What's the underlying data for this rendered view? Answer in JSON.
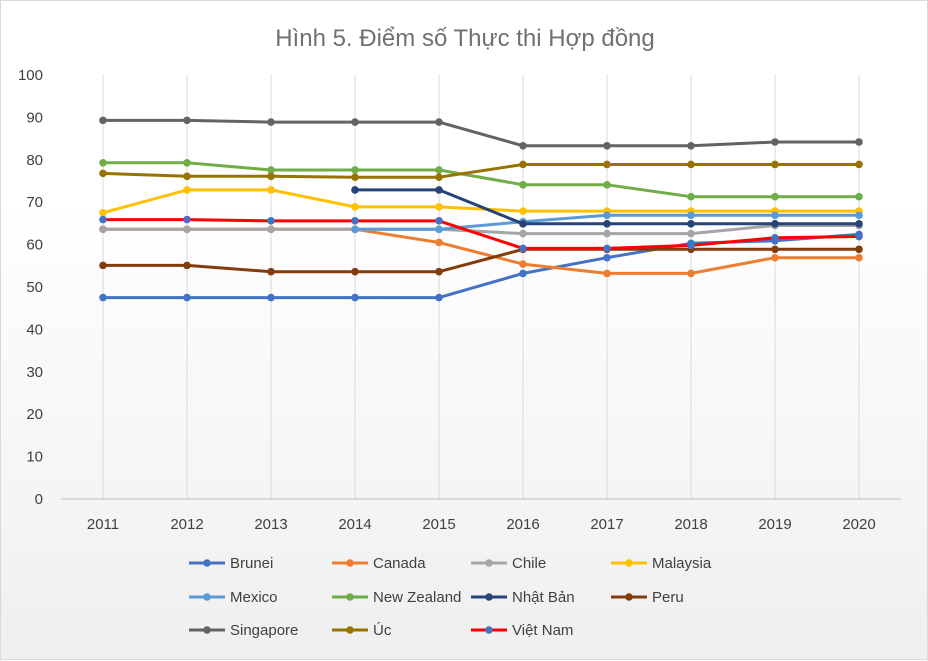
{
  "chart_data": {
    "type": "line",
    "title": "Hình 5. Điểm số Thực thi Hợp đồng",
    "xlabel": "",
    "ylabel": "",
    "x": [
      "2011",
      "2012",
      "2013",
      "2014",
      "2015",
      "2016",
      "2017",
      "2018",
      "2019",
      "2020"
    ],
    "ylim": [
      0,
      100
    ],
    "yticks": [
      0,
      10,
      20,
      30,
      40,
      50,
      60,
      70,
      80,
      90,
      100
    ],
    "grid": "vertical",
    "legend_position": "bottom",
    "series": [
      {
        "name": "Brunei",
        "color": "#4472C4",
        "values": [
          47.5,
          47.5,
          47.5,
          47.5,
          47.5,
          53.2,
          56.9,
          60.3,
          60.9,
          62.4
        ]
      },
      {
        "name": "Canada",
        "color": "#ED7D31",
        "values": [
          63.6,
          63.6,
          63.6,
          63.6,
          60.5,
          55.4,
          53.2,
          53.2,
          56.9,
          56.9
        ]
      },
      {
        "name": "Chile",
        "color": "#A5A5A5",
        "values": [
          63.6,
          63.6,
          63.6,
          63.6,
          63.6,
          62.6,
          62.6,
          62.6,
          64.5,
          64.5
        ]
      },
      {
        "name": "Malaysia",
        "color": "#FFC000",
        "values": [
          67.5,
          72.9,
          72.9,
          68.9,
          68.9,
          67.9,
          67.9,
          67.9,
          67.9,
          67.9
        ]
      },
      {
        "name": "Mexico",
        "color": "#5B9BD5",
        "values": [
          null,
          null,
          null,
          63.6,
          63.6,
          65.4,
          66.9,
          66.9,
          66.9,
          66.9
        ]
      },
      {
        "name": "New Zealand",
        "color": "#70AD47",
        "values": [
          79.3,
          79.3,
          77.6,
          77.6,
          77.6,
          74.1,
          74.1,
          71.3,
          71.3,
          71.3
        ]
      },
      {
        "name": "Nhật Bản",
        "color": "#264478",
        "values": [
          null,
          null,
          null,
          72.9,
          72.9,
          64.9,
          64.9,
          64.9,
          64.9,
          64.9
        ]
      },
      {
        "name": "Peru",
        "color": "#843C0C",
        "values": [
          55.1,
          55.1,
          53.6,
          53.6,
          53.6,
          58.9,
          58.9,
          58.9,
          58.9,
          58.9
        ]
      },
      {
        "name": "Singapore",
        "color": "#636363",
        "values": [
          89.3,
          89.3,
          88.9,
          88.9,
          88.9,
          83.3,
          83.3,
          83.3,
          84.2,
          84.2
        ]
      },
      {
        "name": "Úc",
        "color": "#997300",
        "values": [
          76.8,
          76.1,
          76.1,
          75.9,
          75.9,
          78.9,
          78.9,
          78.9,
          78.9,
          78.9
        ]
      },
      {
        "name": "Việt Nam",
        "color": "#FF0000",
        "marker_color": "#4472C4",
        "values": [
          65.9,
          65.9,
          65.6,
          65.6,
          65.6,
          59.1,
          59.1,
          59.8,
          61.6,
          61.9
        ]
      }
    ]
  }
}
